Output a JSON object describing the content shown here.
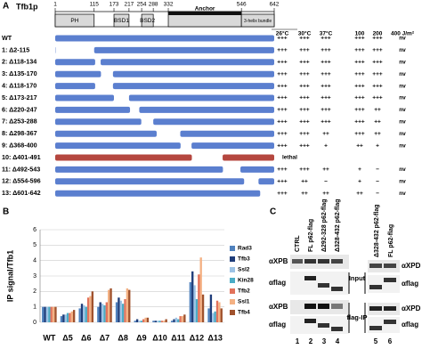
{
  "panelA": {
    "label": "A",
    "protein": "Tfb1p",
    "positions": [
      1,
      115,
      173,
      217,
      254,
      288,
      332,
      546,
      642
    ],
    "domains": [
      {
        "name": "PH",
        "start": 1,
        "end": 115
      },
      {
        "name": "BSD1",
        "start": 173,
        "end": 217
      },
      {
        "name": "BSD2",
        "start": 254,
        "end": 288
      },
      {
        "name": "Anchor",
        "start": 332,
        "end": 546
      },
      {
        "name": "3-helix bundle",
        "start": 546,
        "end": 642
      }
    ],
    "columns": [
      "26°C",
      "30°C",
      "37°C",
      "100",
      "200",
      "400 J/m²"
    ],
    "rows": [
      {
        "label": "WT",
        "deleted": null,
        "phenotype": [
          "+++",
          "+++",
          "+++",
          "+++",
          "+++",
          "nv"
        ]
      },
      {
        "label": "1: Δ2-115",
        "deleted": [
          2,
          115
        ],
        "phenotype": [
          "+++",
          "+++",
          "+++",
          "+++",
          "+++",
          "nv"
        ]
      },
      {
        "label": "2: Δ118-134",
        "deleted": [
          118,
          134
        ],
        "phenotype": [
          "+++",
          "+++",
          "+++",
          "+++",
          "+++",
          "nv"
        ]
      },
      {
        "label": "3: Δ135-170",
        "deleted": [
          135,
          170
        ],
        "phenotype": [
          "+++",
          "+++",
          "+++",
          "+++",
          "+++",
          "nv"
        ]
      },
      {
        "label": "4: Δ118-170",
        "deleted": [
          118,
          170
        ],
        "phenotype": [
          "+++",
          "+++",
          "+++",
          "+++",
          "+++",
          "nv"
        ]
      },
      {
        "label": "5: Δ173-217",
        "deleted": [
          173,
          217
        ],
        "phenotype": [
          "+++",
          "+++",
          "+++",
          "+++",
          "+++",
          "nv"
        ]
      },
      {
        "label": "6: Δ220-247",
        "deleted": [
          220,
          247
        ],
        "phenotype": [
          "+++",
          "+++",
          "+++",
          "+++",
          "++",
          "nv"
        ]
      },
      {
        "label": "7: Δ253-288",
        "deleted": [
          253,
          288
        ],
        "phenotype": [
          "+++",
          "+++",
          "+++",
          "+++",
          "++",
          "nv"
        ]
      },
      {
        "label": "8: Δ298-367",
        "deleted": [
          298,
          367
        ],
        "phenotype": [
          "+++",
          "+++",
          "++",
          "+++",
          "++",
          "nv"
        ]
      },
      {
        "label": "9: Δ368-400",
        "deleted": [
          368,
          400
        ],
        "color": "#2e8b2e",
        "phenotype": [
          "+++",
          "+++",
          "+",
          "++",
          "+",
          "nv"
        ]
      },
      {
        "label": "10: Δ401-491",
        "deleted": [
          401,
          491
        ],
        "color": "#c0392b",
        "phenotype": [
          "lethal"
        ]
      },
      {
        "label": "11: Δ492-543",
        "deleted": [
          492,
          543
        ],
        "phenotype": [
          "+++",
          "+++",
          "++",
          "+",
          "−",
          "nv"
        ]
      },
      {
        "label": "12: Δ554-596",
        "deleted": [
          554,
          596
        ],
        "phenotype": [
          "+++",
          "++",
          "−",
          "+",
          "−",
          "nv"
        ]
      },
      {
        "label": "13: Δ601-642",
        "deleted": [
          601,
          642
        ],
        "phenotype": [
          "+++",
          "++",
          "++",
          "++",
          "−",
          "nv"
        ]
      }
    ]
  },
  "chart_data": {
    "type": "bar",
    "label": "B",
    "y_label": "IP signal/Tfb1",
    "categories": [
      "WT",
      "Δ5",
      "Δ6",
      "Δ7",
      "Δ8",
      "Δ9",
      "Δ10",
      "Δ11",
      "Δ12",
      "Δ13"
    ],
    "category_colors": [
      "#000",
      "#000",
      "#000",
      "#000",
      "#000",
      "#2e8b2e",
      "#c0392b",
      "#000",
      "#000",
      "#000"
    ],
    "series": [
      {
        "name": "Rad3",
        "color": "#4f81bd",
        "values": [
          1,
          0.4,
          0.9,
          1.0,
          1.3,
          0.1,
          0.1,
          0.1,
          2.6,
          0.9
        ]
      },
      {
        "name": "Tfb3",
        "color": "#1f3d7a",
        "values": [
          1,
          0.5,
          1.2,
          1.3,
          1.6,
          0.2,
          0.1,
          0.2,
          3.3,
          1.8
        ]
      },
      {
        "name": "Ssl2",
        "color": "#9dc3e6",
        "values": [
          1,
          0.5,
          1.1,
          1.2,
          1.4,
          0.1,
          0.1,
          0.3,
          2.4,
          0.6
        ]
      },
      {
        "name": "Kin28",
        "color": "#4bacc6",
        "values": [
          1,
          0.6,
          1.0,
          1.1,
          1.2,
          0.1,
          0.1,
          0.2,
          1.5,
          0.7
        ]
      },
      {
        "name": "Tfb2",
        "color": "#e2725b",
        "values": [
          1,
          0.6,
          1.6,
          1.3,
          1.5,
          0.2,
          0.1,
          0.4,
          3.1,
          1.4
        ]
      },
      {
        "name": "Ssl1",
        "color": "#f4b183",
        "values": [
          1,
          0.7,
          1.7,
          2.1,
          2.2,
          0.3,
          0.1,
          0.4,
          4.2,
          1.3
        ]
      },
      {
        "name": "Tfb4",
        "color": "#a0522d",
        "values": [
          1,
          0.8,
          2.0,
          2.2,
          2.1,
          0.3,
          0.2,
          0.5,
          1.8,
          0.9
        ]
      }
    ],
    "ylim": [
      0,
      6
    ],
    "yticks": [
      0,
      1,
      2,
      3,
      4,
      5,
      6
    ],
    "grid": true
  },
  "panelC": {
    "label": "C",
    "lanes_left": [
      "CTRL",
      "FL p62-flag",
      "Δ292-328 p62-flag",
      "Δ328-432 p62-flag"
    ],
    "lanes_right": [
      "Δ328-432 p62-flag",
      "FL p62-flag"
    ],
    "left_antibodies": [
      "αXPB",
      "αflag",
      "αXPB",
      "αflag"
    ],
    "right_antibodies": [
      "αXPD",
      "αflag",
      "αXPD",
      "αflag"
    ],
    "sections": [
      "Input",
      "flag-IP"
    ],
    "lane_numbers": [
      "1",
      "2",
      "3",
      "4",
      "5",
      "6"
    ]
  }
}
